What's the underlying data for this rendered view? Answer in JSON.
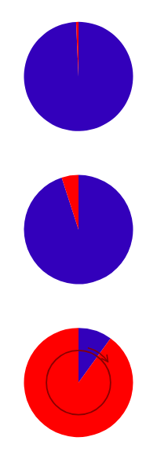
{
  "chart_data": [
    {
      "type": "pie",
      "values": [
        99.3,
        0.7
      ],
      "colors": [
        "#3300BB",
        "#FF0000"
      ]
    },
    {
      "type": "pie",
      "values": [
        95.0,
        5.0
      ],
      "colors": [
        "#3300BB",
        "#FF0000"
      ]
    },
    {
      "type": "pie",
      "values": [
        10.0,
        90.0
      ],
      "colors": [
        "#3300BB",
        "#FF0000"
      ]
    }
  ]
}
